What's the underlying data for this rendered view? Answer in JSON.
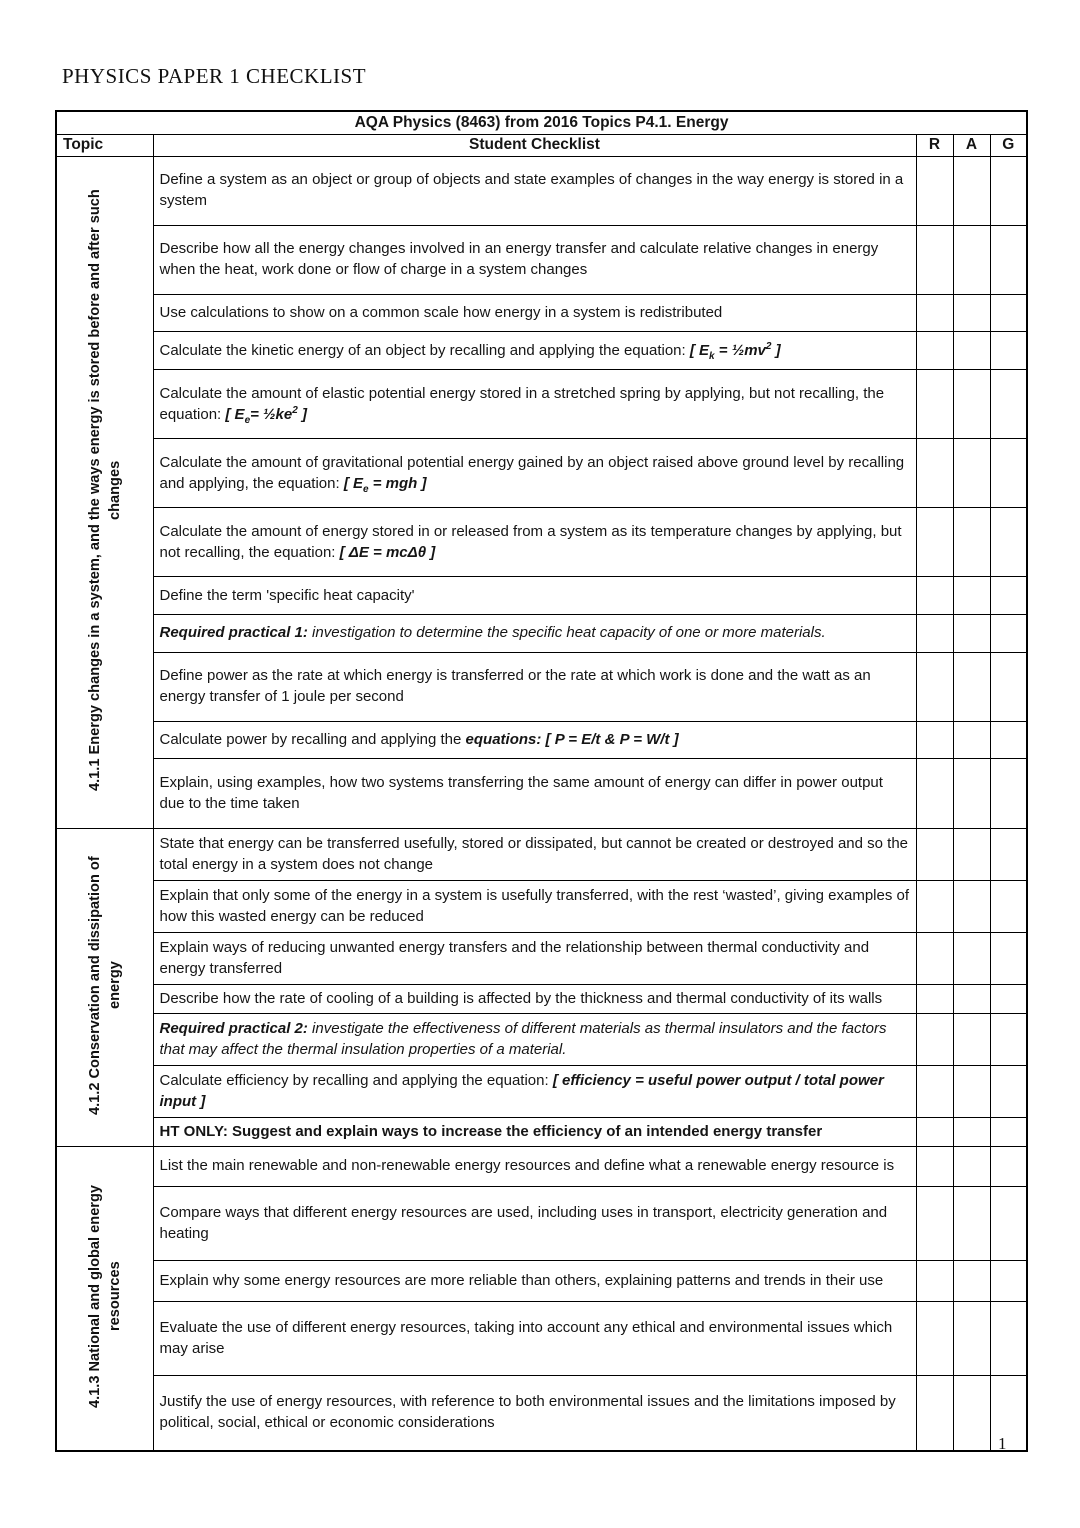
{
  "page": {
    "title": "PHYSICS PAPER 1 CHECKLIST",
    "number": "1"
  },
  "table": {
    "title": "AQA Physics (8463) from 2016 Topics P4.1. Energy",
    "headers": {
      "topic": "Topic",
      "checklist": "Student Checklist",
      "r": "R",
      "a": "A",
      "g": "G"
    },
    "rag_columns": [
      "R",
      "A",
      "G"
    ],
    "sections": [
      {
        "label": "4.1.1 Energy changes in a system, and the ways energy is stored before and after such changes",
        "rows": [
          {
            "lines": 2,
            "segments": [
              {
                "t": "Define a system as an object or group of objects and state examples of changes in the way energy is stored in a system"
              }
            ]
          },
          {
            "lines": 2,
            "segments": [
              {
                "t": "Describe how all the energy changes involved in an energy transfer and calculate relative changes in energy when the heat, work done or flow of charge in a system changes"
              }
            ]
          },
          {
            "lines": 1,
            "segments": [
              {
                "t": "Use calculations to show on a common scale how energy in a system is redistributed"
              }
            ]
          },
          {
            "lines": 1,
            "segments": [
              {
                "t": "Calculate the kinetic energy of an object by recalling and applying the equation: "
              },
              {
                "t": "[ E",
                "s": "bi"
              },
              {
                "t": "k",
                "s": "bisub"
              },
              {
                "t": " = ½mv",
                "s": "bi"
              },
              {
                "t": "2",
                "s": "bisup"
              },
              {
                "t": " ]",
                "s": "bi"
              }
            ]
          },
          {
            "lines": 2,
            "segments": [
              {
                "t": "Calculate the amount of elastic potential energy stored in a stretched spring by applying, but not recalling, the equation: "
              },
              {
                "t": "[ E",
                "s": "bi"
              },
              {
                "t": "e",
                "s": "bisub"
              },
              {
                "t": "= ½ke",
                "s": "bi"
              },
              {
                "t": "2",
                "s": "bisup"
              },
              {
                "t": " ]",
                "s": "bi"
              }
            ]
          },
          {
            "lines": 2,
            "segments": [
              {
                "t": "Calculate the amount of gravitational potential energy gained by an object raised above ground level by recalling and applying, the equation: "
              },
              {
                "t": "[ E",
                "s": "bi"
              },
              {
                "t": "e",
                "s": "bisub"
              },
              {
                "t": " = mgh ]",
                "s": "bi"
              }
            ]
          },
          {
            "lines": 2,
            "segments": [
              {
                "t": "Calculate the amount of energy stored in or released from a system as its temperature changes by applying, but not recalling, the equation: "
              },
              {
                "t": "[ ΔE = mcΔθ ]",
                "s": "bi"
              }
            ]
          },
          {
            "lines": 1,
            "segments": [
              {
                "t": "Define the term 'specific heat capacity'"
              }
            ]
          },
          {
            "lines": 1,
            "segments": [
              {
                "t": "Required practical 1:",
                "s": "bi"
              },
              {
                "t": " investigation to determine the specific heat capacity of one or more materials.",
                "s": "i"
              }
            ]
          },
          {
            "lines": 2,
            "segments": [
              {
                "t": "Define power as the rate at which energy is transferred or the rate at which work is done and the watt as an energy transfer of 1 joule per second"
              }
            ]
          },
          {
            "lines": 1,
            "segments": [
              {
                "t": "Calculate power by recalling and applying the "
              },
              {
                "t": "equations: [ P = E/t & P = W/t ]",
                "s": "bi"
              }
            ]
          },
          {
            "lines": 2,
            "segments": [
              {
                "t": "Explain, using examples, how two systems transferring the same amount of energy can differ in power output due to the time taken"
              }
            ]
          }
        ]
      },
      {
        "label": "4.1.2 Conservation and dissipation of energy",
        "rows": [
          {
            "lines": 2,
            "segments": [
              {
                "t": "State that energy can be transferred usefully, stored or dissipated, but cannot be created or destroyed and so the total energy in a system does not change"
              }
            ]
          },
          {
            "lines": 2,
            "segments": [
              {
                "t": "Explain that only some of the energy in a system is usefully transferred, with the rest ‘wasted’, giving examples of how this wasted energy can be reduced"
              }
            ]
          },
          {
            "lines": 2,
            "segments": [
              {
                "t": "Explain ways of reducing unwanted energy transfers and the relationship between thermal conductivity and energy transferred"
              }
            ]
          },
          {
            "lines": 2,
            "segments": [
              {
                "t": "Describe how the rate of cooling of a building is affected by the thickness and thermal conductivity of its walls"
              }
            ]
          },
          {
            "lines": 2,
            "segments": [
              {
                "t": "Required practical 2:",
                "s": "bi"
              },
              {
                "t": " investigate the effectiveness of different materials as thermal insulators and the factors that may affect the thermal insulation properties of a material.",
                "s": "i"
              }
            ]
          },
          {
            "lines": 2,
            "segments": [
              {
                "t": "Calculate efficiency by recalling and applying the equation: "
              },
              {
                "t": "[ efficiency = useful power output / total power input ]",
                "s": "bi"
              }
            ]
          },
          {
            "lines": 1,
            "segments": [
              {
                "t": "HT ONLY: Suggest and explain ways to increase the efficiency of an intended energy transfer",
                "s": "b"
              }
            ]
          }
        ]
      },
      {
        "label": "4.1.3 National and global energy resources",
        "rows": [
          {
            "lines": 2,
            "segments": [
              {
                "t": "List the main renewable and non-renewable energy resources and define what a renewable energy resource is"
              }
            ]
          },
          {
            "lines": 2,
            "segments": [
              {
                "t": "Compare ways that different energy resources are used, including uses in transport, electricity generation and heating"
              }
            ]
          },
          {
            "lines": 2,
            "segments": [
              {
                "t": "Explain why some energy resources are more reliable than others, explaining patterns and trends in their use"
              }
            ]
          },
          {
            "lines": 2,
            "segments": [
              {
                "t": "Evaluate the use of different energy resources, taking into account any ethical and environmental issues which may arise"
              }
            ]
          },
          {
            "lines": 2,
            "segments": [
              {
                "t": "Justify the use of energy resources, with reference to both environmental issues and the limitations imposed by political, social, ethical or economic considerations"
              }
            ]
          }
        ]
      }
    ]
  }
}
